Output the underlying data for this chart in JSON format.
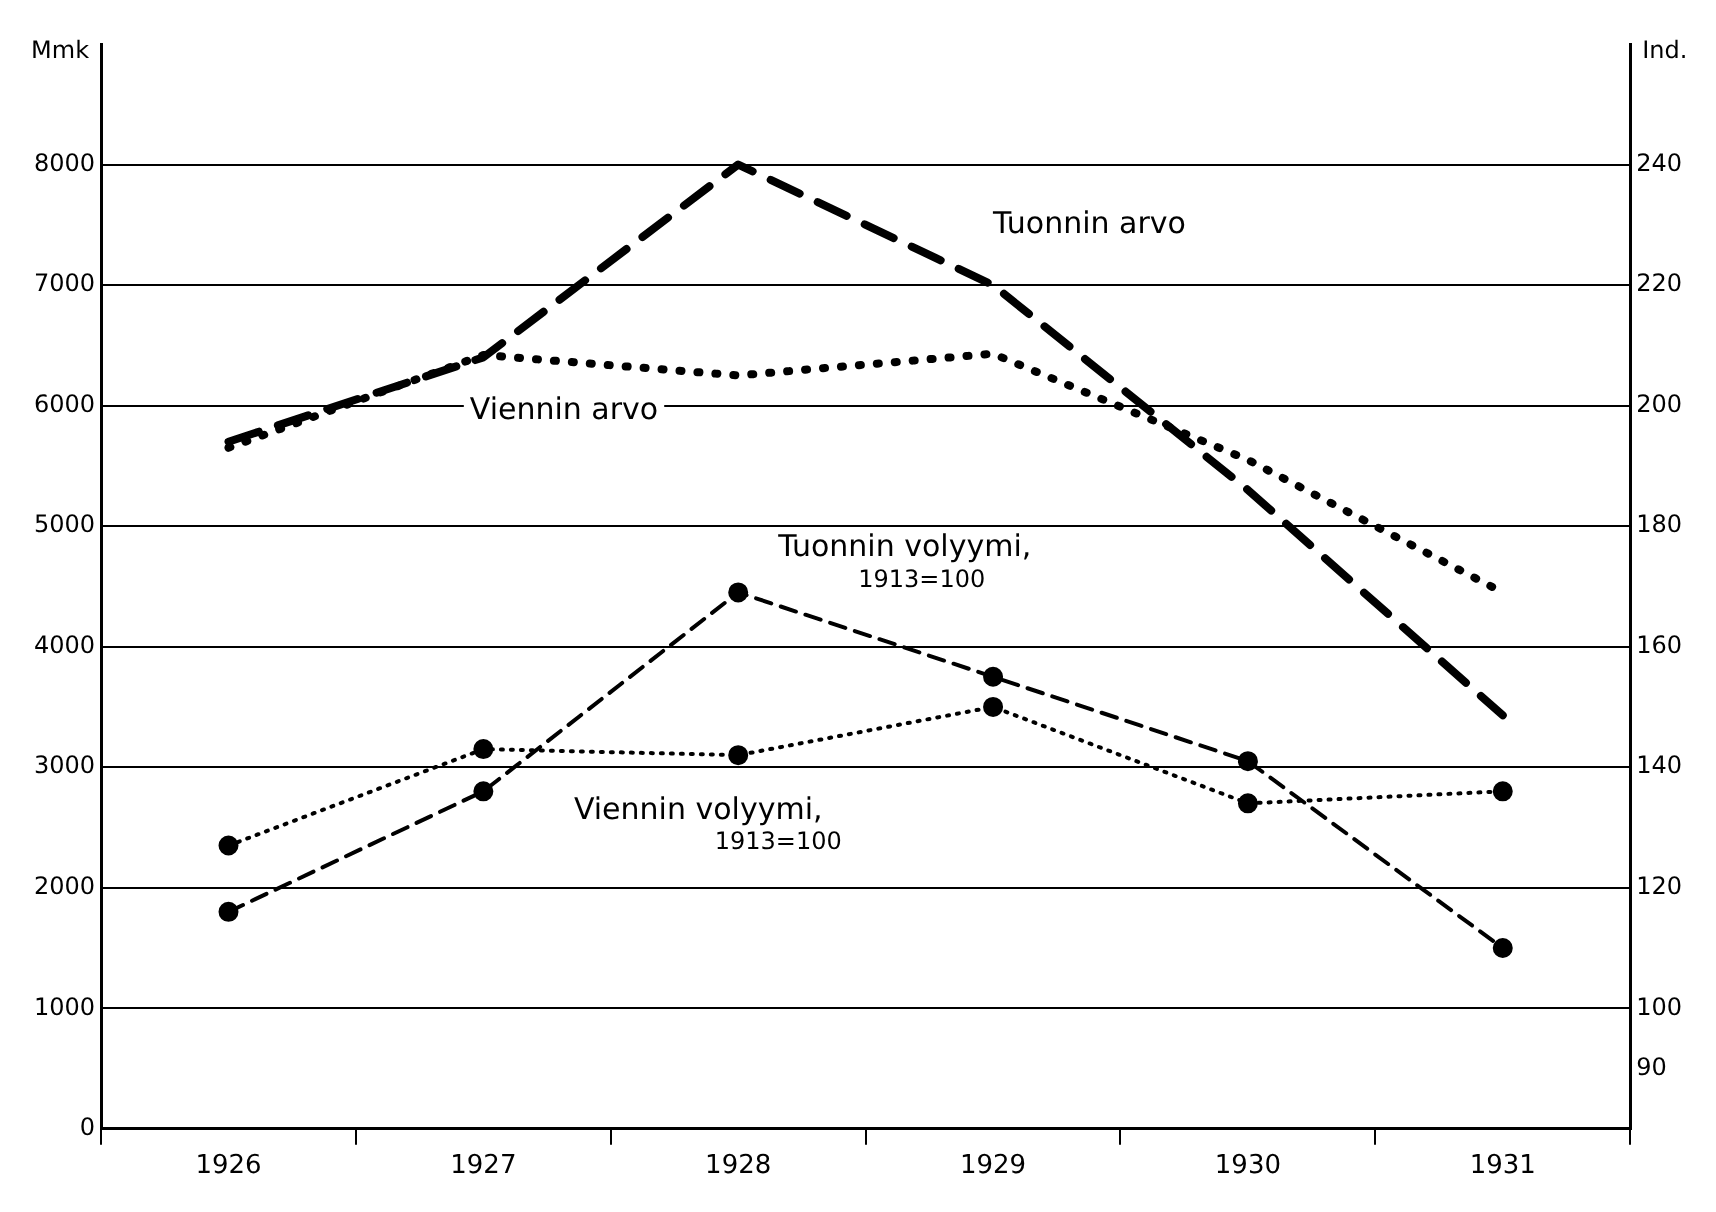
{
  "chart_data": {
    "type": "line",
    "ylabel": "Mmk",
    "y2label": "Ind.",
    "categories": [
      "1926",
      "1927",
      "1928",
      "1929",
      "1930",
      "1931"
    ],
    "ylim": [
      0,
      9000
    ],
    "yticks": [
      0,
      1000,
      2000,
      3000,
      4000,
      5000,
      6000,
      7000,
      8000
    ],
    "y2lim": [
      80,
      260
    ],
    "y2ticks": [
      90,
      100,
      120,
      140,
      160,
      180,
      200,
      220,
      240
    ],
    "grid": "y",
    "legend": false,
    "series": [
      {
        "name": "Tuonnin arvo",
        "color": "#000000",
        "line_style": "dashed",
        "marker": "none",
        "values": [
          5700,
          6400,
          8000,
          7000,
          5300,
          3430
        ]
      },
      {
        "name": "Viennin arvo",
        "color": "#000000",
        "line_style": "dotted",
        "marker": "none",
        "values": [
          5650,
          6420,
          6250,
          6430,
          5550,
          4450
        ]
      },
      {
        "name": "Tuonnin volyymi, 1913=100",
        "color": "#000000",
        "line_style": "dashed",
        "marker": "circle",
        "axis": "y2",
        "values": [
          116,
          136,
          169,
          155,
          141,
          110
        ]
      },
      {
        "name": "Viennin volyymi, 1913=100",
        "color": "#000000",
        "line_style": "dotted",
        "marker": "circle",
        "axis": "y2",
        "values": [
          127,
          143,
          142,
          150,
          134,
          136
        ]
      }
    ]
  }
}
